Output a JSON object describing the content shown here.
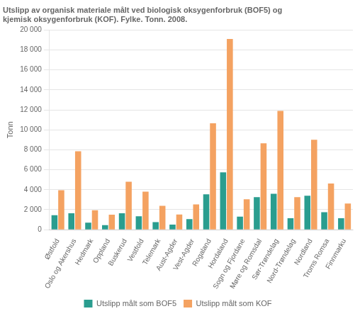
{
  "chart_data": {
    "type": "bar",
    "title": "Utslipp av organisk materiale målt ved biologisk oksygenforbruk (BOF5) og\nkjemisk oksygenforbruk (KOF). Fylke. Tonn. 2008.",
    "ylabel": "Tonn",
    "categories": [
      "Østfold",
      "Oslo og Akershus",
      "Hedmark",
      "Oppland",
      "Buskerud",
      "Vestfold",
      "Telemark",
      "Aust-Agder",
      "Vest-Agder",
      "Rogaland",
      "Hordaland",
      "Sogn og Fjordane",
      "Møre og Romsdal",
      "Sør-Trøndelag",
      "Nord-Trøndelag",
      "Nordland",
      "Troms Romsa",
      "Finnmarku"
    ],
    "series": [
      {
        "name": "Utslipp målt som BOF5",
        "color": "#2a9d8f",
        "values": [
          1450,
          1650,
          700,
          450,
          1650,
          1350,
          750,
          500,
          1050,
          3550,
          5750,
          1300,
          3250,
          3600,
          1150,
          3400,
          1750,
          1150
        ]
      },
      {
        "name": "Utslipp målt som KOF",
        "color": "#f4a261",
        "values": [
          3950,
          7850,
          1950,
          1500,
          4800,
          3800,
          2380,
          1520,
          2530,
          10650,
          19100,
          3050,
          8650,
          11900,
          3250,
          9000,
          4620,
          2620
        ]
      }
    ],
    "ylim": [
      0,
      20000
    ],
    "yticks": [
      0,
      {
        "value": 2000,
        "label": "2 000"
      },
      {
        "value": 4000,
        "label": "4 000"
      },
      {
        "value": 6000,
        "label": "6 000"
      },
      {
        "value": 8000,
        "label": "8 000"
      },
      {
        "value": 10000,
        "label": "10 000"
      },
      {
        "value": 12000,
        "label": "12 000"
      },
      {
        "value": 14000,
        "label": "14 000"
      },
      {
        "value": 16000,
        "label": "16 000"
      },
      {
        "value": 18000,
        "label": "18 000"
      },
      {
        "value": 20000,
        "label": "20 000"
      }
    ],
    "grid": true,
    "legend": "bottom"
  }
}
